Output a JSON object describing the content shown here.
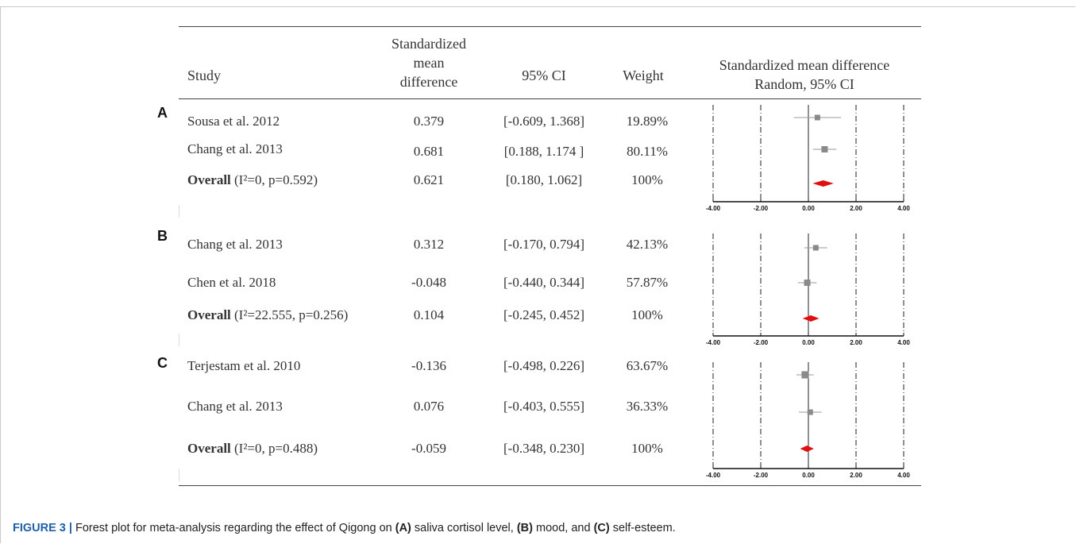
{
  "header": {
    "study": "Study",
    "smd": [
      "Standardized",
      "mean",
      "difference"
    ],
    "ci": "95% CI",
    "weight": "Weight",
    "plot_title": [
      "Standardized mean difference",
      "Random, 95% CI"
    ]
  },
  "chart_data": {
    "type": "forest",
    "xlim": [
      -4,
      4
    ],
    "ticks": [
      "-4.00",
      "-2.00",
      "0.00",
      "2.00",
      "4.00"
    ],
    "tick_values": [
      -4,
      -2,
      0,
      2,
      4
    ],
    "colors": {
      "study_marker": "#8a8a8a",
      "overall_marker": "#e01010",
      "axis": "#111111"
    },
    "panels": [
      {
        "letter": "A",
        "rows": [
          {
            "study": "Sousa et al. 2012",
            "smd": 0.379,
            "lo": -0.609,
            "hi": 1.368,
            "smd_text": "0.379",
            "ci_text": "[-0.609, 1.368]",
            "weight_text": "19.89%"
          },
          {
            "study": "Chang et al. 2013",
            "smd": 0.681,
            "lo": 0.188,
            "hi": 1.174,
            "smd_text": "0.681",
            "ci_text": "[0.188, 1.174 ]",
            "weight_text": "80.11%"
          }
        ],
        "overall": {
          "label": "Overall",
          "stats": " (I²=0, p=0.592)",
          "smd": 0.621,
          "lo": 0.18,
          "hi": 1.062,
          "smd_text": "0.621",
          "ci_text": "[0.180, 1.062]",
          "weight_text": "100%"
        }
      },
      {
        "letter": "B",
        "rows": [
          {
            "study": "Chang et al. 2013",
            "smd": 0.312,
            "lo": -0.17,
            "hi": 0.794,
            "smd_text": "0.312",
            "ci_text": "[-0.170, 0.794]",
            "weight_text": "42.13%"
          },
          {
            "study": "Chen et al. 2018",
            "smd": -0.048,
            "lo": -0.44,
            "hi": 0.344,
            "smd_text": "-0.048",
            "ci_text": "[-0.440, 0.344]",
            "weight_text": "57.87%"
          }
        ],
        "overall": {
          "label": "Overall",
          "stats": " (I²=22.555, p=0.256)",
          "smd": 0.104,
          "lo": -0.245,
          "hi": 0.452,
          "smd_text": "0.104",
          "ci_text": "[-0.245, 0.452]",
          "weight_text": "100%"
        }
      },
      {
        "letter": "C",
        "rows": [
          {
            "study": "Terjestam et al. 2010",
            "smd": -0.136,
            "lo": -0.498,
            "hi": 0.226,
            "smd_text": "-0.136",
            "ci_text": "[-0.498, 0.226]",
            "weight_text": "63.67%"
          },
          {
            "study": "Chang et al. 2013",
            "smd": 0.076,
            "lo": -0.403,
            "hi": 0.555,
            "smd_text": "0.076",
            "ci_text": "[-0.403, 0.555]",
            "weight_text": "36.33%"
          }
        ],
        "overall": {
          "label": "Overall",
          "stats": " (I²=0, p=0.488)",
          "smd": -0.059,
          "lo": -0.348,
          "hi": 0.23,
          "smd_text": "-0.059",
          "ci_text": "[-0.348, 0.230]",
          "weight_text": "100%"
        }
      }
    ]
  },
  "caption": {
    "fig": "FIGURE 3 |",
    "t1": " Forest plot for meta-analysis regarding the effect of Qigong on ",
    "a": "(A)",
    "t2": " saliva cortisol level, ",
    "b": "(B)",
    "t3": " mood, and ",
    "c": "(C)",
    "t4": " self-esteem."
  }
}
